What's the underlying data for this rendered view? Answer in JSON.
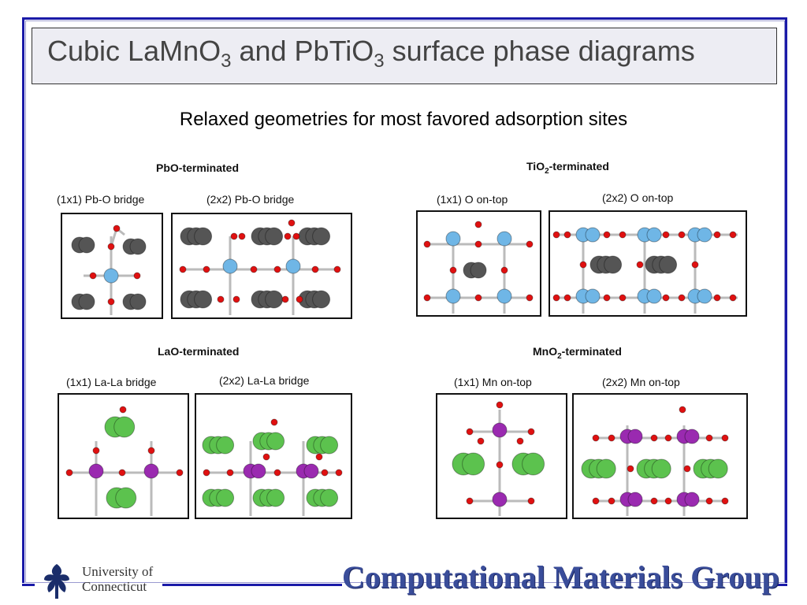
{
  "slide": {
    "title_prefix": "Cubic LaMnO",
    "title_sub1": "3",
    "title_mid": " and PbTiO",
    "title_sub2": "3",
    "title_suffix": " surface phase diagrams",
    "subtitle": "Relaxed geometries for most favored adsorption sites"
  },
  "panels": {
    "pbo": {
      "heading": "PbO-terminated",
      "label_1x1": "(1x1) Pb-O bridge",
      "label_2x2": "(2x2)  Pb-O bridge"
    },
    "tio2": {
      "heading_pre": "TiO",
      "heading_sub": "2",
      "heading_post": "-terminated",
      "label_1x1": "(1x1) O on-top",
      "label_2x2": "(2x2)  O on-top"
    },
    "lao": {
      "heading": "LaO-terminated",
      "label_1x1": "(1x1) La-La bridge",
      "label_2x2": "(2x2)  La-La bridge"
    },
    "mno2": {
      "heading_pre": "MnO",
      "heading_sub": "2",
      "heading_post": "-terminated",
      "label_1x1": "(1x1) Mn on-top",
      "label_2x2": "(2x2)  Mn on-top"
    }
  },
  "atom_colors": {
    "pb": "#555555",
    "o": "#e01010",
    "ti": "#6fb6e6",
    "la": "#5cc24e",
    "mn": "#9a2ab0",
    "bond": "#bbbbbb"
  },
  "footer": {
    "university_line1": "University of",
    "university_line2": "Connecticut",
    "group_name": "Computational Materials Group",
    "logo_icon": "oak-leaf-icon"
  }
}
